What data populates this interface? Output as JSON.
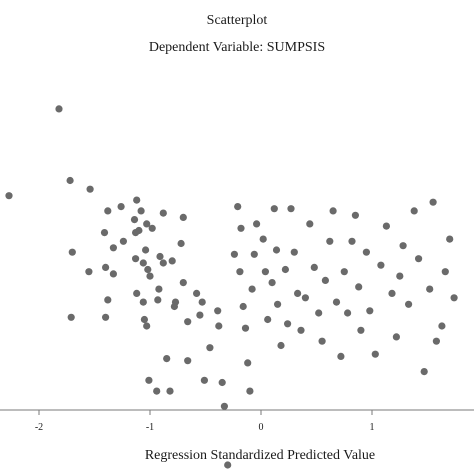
{
  "colors": {
    "background": "#ffffff",
    "marker": "#6a6a6a",
    "axis": "#7a7a7a",
    "text": "#1a1a1a"
  },
  "chart_data": {
    "type": "scatter",
    "title": "Scatterplot",
    "subtitle": "Dependent Variable: SUMPSIS",
    "xlabel": "Regression Standardized Predicted Value",
    "ylabel": "",
    "xlim": [
      -2.35,
      1.8
    ],
    "xticks": [
      -2,
      -1,
      0,
      1
    ],
    "grid": false,
    "legend": "none",
    "points": [
      [
        -2.27,
        1.95
      ],
      [
        -1.82,
        2.35
      ],
      [
        -1.72,
        2.02
      ],
      [
        -1.7,
        1.69
      ],
      [
        -1.71,
        1.39
      ],
      [
        -1.54,
        1.98
      ],
      [
        -1.55,
        1.6
      ],
      [
        -1.4,
        1.62
      ],
      [
        -1.41,
        1.78
      ],
      [
        -1.38,
        1.88
      ],
      [
        -1.33,
        1.71
      ],
      [
        -1.33,
        1.59
      ],
      [
        -1.38,
        1.47
      ],
      [
        -1.4,
        1.39
      ],
      [
        -1.24,
        1.74
      ],
      [
        -1.26,
        1.9
      ],
      [
        -1.12,
        1.93
      ],
      [
        -1.14,
        1.84
      ],
      [
        -1.1,
        1.79
      ],
      [
        -1.13,
        1.66
      ],
      [
        -1.04,
        1.7
      ],
      [
        -1.02,
        1.61
      ],
      [
        -1.13,
        1.78
      ],
      [
        -1.06,
        1.46
      ],
      [
        -1.12,
        1.5
      ],
      [
        -1.03,
        1.82
      ],
      [
        -1.08,
        1.88
      ],
      [
        -1.05,
        1.38
      ],
      [
        -1.03,
        1.35
      ],
      [
        -1.0,
        1.58
      ],
      [
        -1.01,
        1.1
      ],
      [
        -0.94,
        1.05
      ],
      [
        -0.98,
        1.8
      ],
      [
        -1.06,
        1.64
      ],
      [
        -0.93,
        1.47
      ],
      [
        -0.92,
        1.52
      ],
      [
        -0.88,
        1.87
      ],
      [
        -0.88,
        1.64
      ],
      [
        -0.91,
        1.67
      ],
      [
        -0.85,
        1.2
      ],
      [
        -0.82,
        1.05
      ],
      [
        -0.8,
        1.65
      ],
      [
        -0.77,
        1.46
      ],
      [
        -0.78,
        1.44
      ],
      [
        -0.72,
        1.73
      ],
      [
        -0.7,
        1.85
      ],
      [
        -0.7,
        1.55
      ],
      [
        -0.66,
        1.37
      ],
      [
        -0.66,
        1.19
      ],
      [
        -0.58,
        1.5
      ],
      [
        -0.55,
        1.4
      ],
      [
        -0.53,
        1.46
      ],
      [
        -0.51,
        1.1
      ],
      [
        -0.46,
        1.25
      ],
      [
        -0.39,
        1.42
      ],
      [
        -0.38,
        1.35
      ],
      [
        -0.33,
        0.98
      ],
      [
        -0.35,
        1.09
      ],
      [
        -0.3,
        0.71
      ],
      [
        -0.24,
        1.68
      ],
      [
        -0.21,
        1.9
      ],
      [
        -0.18,
        1.8
      ],
      [
        -0.19,
        1.6
      ],
      [
        -0.16,
        1.44
      ],
      [
        -0.14,
        1.34
      ],
      [
        -0.12,
        1.18
      ],
      [
        -0.1,
        1.05
      ],
      [
        -0.08,
        1.52
      ],
      [
        -0.06,
        1.68
      ],
      [
        -0.04,
        1.82
      ],
      [
        0.02,
        1.75
      ],
      [
        0.04,
        1.6
      ],
      [
        0.06,
        1.38
      ],
      [
        0.1,
        1.55
      ],
      [
        0.12,
        1.89
      ],
      [
        0.14,
        1.7
      ],
      [
        0.15,
        1.45
      ],
      [
        0.18,
        1.26
      ],
      [
        0.22,
        1.61
      ],
      [
        0.24,
        1.36
      ],
      [
        0.27,
        1.89
      ],
      [
        0.3,
        1.69
      ],
      [
        0.33,
        1.5
      ],
      [
        0.36,
        1.33
      ],
      [
        0.4,
        1.48
      ],
      [
        0.44,
        1.82
      ],
      [
        0.48,
        1.62
      ],
      [
        0.52,
        1.41
      ],
      [
        0.55,
        1.28
      ],
      [
        0.58,
        1.56
      ],
      [
        0.62,
        1.74
      ],
      [
        0.65,
        1.88
      ],
      [
        0.68,
        1.46
      ],
      [
        0.72,
        1.21
      ],
      [
        0.75,
        1.6
      ],
      [
        0.78,
        1.41
      ],
      [
        0.82,
        1.74
      ],
      [
        0.85,
        1.86
      ],
      [
        0.88,
        1.53
      ],
      [
        0.9,
        1.33
      ],
      [
        0.95,
        1.69
      ],
      [
        0.98,
        1.42
      ],
      [
        1.03,
        1.22
      ],
      [
        1.08,
        1.63
      ],
      [
        1.13,
        1.81
      ],
      [
        1.18,
        1.5
      ],
      [
        1.22,
        1.3
      ],
      [
        1.25,
        1.58
      ],
      [
        1.28,
        1.72
      ],
      [
        1.33,
        1.45
      ],
      [
        1.38,
        1.88
      ],
      [
        1.42,
        1.66
      ],
      [
        1.47,
        1.14
      ],
      [
        1.52,
        1.52
      ],
      [
        1.55,
        1.92
      ],
      [
        1.58,
        1.28
      ],
      [
        1.63,
        1.35
      ],
      [
        1.66,
        1.6
      ],
      [
        1.7,
        1.75
      ],
      [
        1.74,
        1.48
      ]
    ]
  }
}
